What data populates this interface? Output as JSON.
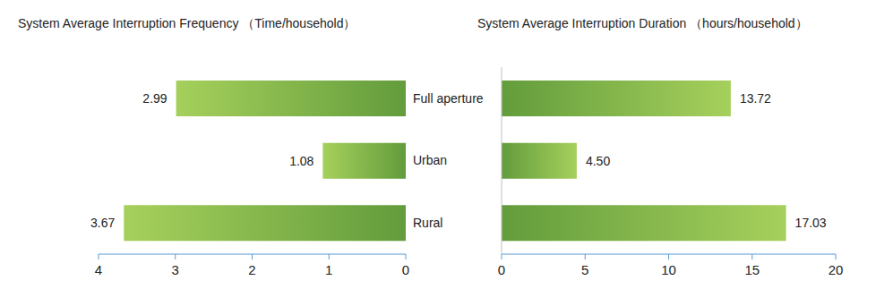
{
  "chart_data": [
    {
      "type": "bar",
      "orientation": "horizontal",
      "title": "System Average Interruption Frequency （Time/household）",
      "categories": [
        "Full aperture",
        "Urban",
        "Rural"
      ],
      "values": [
        2.99,
        1.08,
        3.67
      ],
      "color": "#639c3c",
      "xlim": [
        4,
        0
      ],
      "xticks": [
        4,
        3,
        2,
        1,
        0
      ],
      "data_labels": true
    },
    {
      "type": "bar",
      "orientation": "horizontal",
      "title": "System Average Interruption Duration （hours/household）",
      "categories": [
        "Full aperture",
        "Urban",
        "Rural"
      ],
      "values": [
        13.72,
        4.5,
        17.03
      ],
      "value_labels": [
        "13.72",
        "4.50",
        "17.03"
      ],
      "color": "#639c3c",
      "xlim": [
        0,
        20
      ],
      "xticks": [
        0,
        5,
        10,
        15,
        20
      ],
      "data_labels": true
    }
  ]
}
